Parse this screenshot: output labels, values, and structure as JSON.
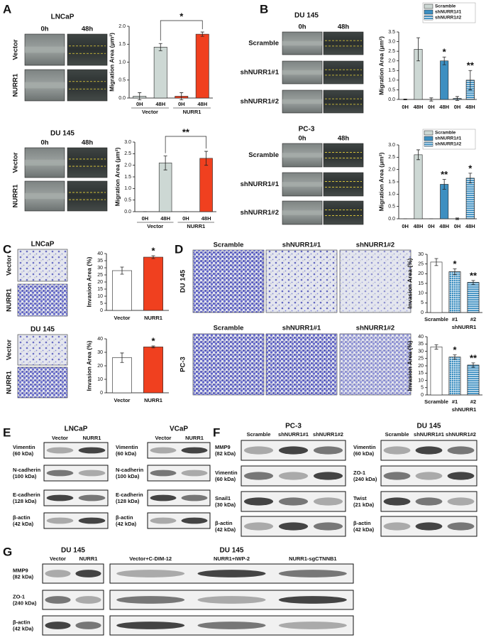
{
  "panel_labels": [
    "A",
    "B",
    "C",
    "D",
    "E",
    "F",
    "G"
  ],
  "scratch": [
    {
      "title": "LNCaP",
      "columns": [
        "0h",
        "48h"
      ],
      "rows": [
        "Vector",
        "NURR1"
      ]
    },
    {
      "title": "DU 145",
      "columns": [
        "0h",
        "48h"
      ],
      "rows": [
        "Vector",
        "NURR1"
      ]
    },
    {
      "title": "DU 145",
      "columns": [
        "0h",
        "48h"
      ],
      "rows": [
        "Scramble",
        "shNURR1#1",
        "shNURR1#2"
      ]
    },
    {
      "title": "PC-3",
      "columns": [
        "0h",
        "48h"
      ],
      "rows": [
        "Scramble",
        "shNURR1#1",
        "shNURR1#2"
      ]
    }
  ],
  "invasion": [
    {
      "title": "LNCaP",
      "rows": [
        "Vector",
        "NURR1"
      ]
    },
    {
      "title": "DU 145",
      "rows": [
        "Vector",
        "NURR1"
      ]
    }
  ],
  "invasion_grid": [
    {
      "row": "DU 145",
      "columns": [
        "Scramble",
        "shNURR1#1",
        "shNURR1#2"
      ]
    },
    {
      "row": "PC-3",
      "columns": [
        "Scramble",
        "shNURR1#1",
        "shNURR1#2"
      ]
    }
  ],
  "blots": {
    "E": [
      {
        "title": "LNCaP",
        "lanes": [
          "Vector",
          "NURR1"
        ],
        "rows": [
          {
            "name": "Vimentin",
            "size": "(60 kDa)"
          },
          {
            "name": "N-cadherin",
            "size": "(100 kDa)"
          },
          {
            "name": "E-cadherin",
            "size": "(128 kDa)"
          },
          {
            "name": "β-actin",
            "size": "(42 kDa)"
          }
        ]
      },
      {
        "title": "VCaP",
        "lanes": [
          "Vector",
          "NURR1"
        ],
        "rows": [
          {
            "name": "Vimentin",
            "size": "(60 kDa)"
          },
          {
            "name": "N-cadherin",
            "size": "(100 kDa)"
          },
          {
            "name": "E-cadherin",
            "size": "(128 kDa)"
          },
          {
            "name": "β-actin",
            "size": "(42 kDa)"
          }
        ]
      }
    ],
    "F": [
      {
        "title": "PC-3",
        "lanes": [
          "Scramble",
          "shNURR1#1",
          "shNURR1#2"
        ],
        "rows": [
          {
            "name": "MMP9",
            "size": "(82 kDa)"
          },
          {
            "name": "Vimentin",
            "size": "(60 kDa)"
          },
          {
            "name": "Snail1",
            "size": "(30 kDa)"
          },
          {
            "name": "β-actin",
            "size": "(42 kDa)"
          }
        ]
      },
      {
        "title": "DU 145",
        "lanes": [
          "Scramble",
          "shNURR1#1",
          "shNURR1#2"
        ],
        "rows": [
          {
            "name": "Vimentin",
            "size": "(60 kDa)"
          },
          {
            "name": "ZO-1",
            "size": "(240 kDa)"
          },
          {
            "name": "Twist",
            "size": "(21 kDa)"
          },
          {
            "name": "β-actin",
            "size": "(42 kDa)"
          }
        ]
      }
    ],
    "G": [
      {
        "title": "DU 145",
        "lanes": [
          "Vector",
          "NURR1"
        ],
        "rows": [
          {
            "name": "MMP9",
            "size": "(82 kDa)"
          },
          {
            "name": "ZO-1",
            "size": "(240 kDa)"
          },
          {
            "name": "β-actin",
            "size": "(42 kDa)"
          }
        ]
      },
      {
        "title": "DU 145",
        "lanes": [
          "Vector+C-DIM-12",
          "NURR1+IWP-2",
          "NURR1-sgCTNNB1"
        ]
      }
    ]
  },
  "chart_data": [
    {
      "type": "bar",
      "y_label": "Migration Area (μm²)",
      "categories": [
        "0H",
        "48H",
        "0H",
        "48H"
      ],
      "groups": [
        "Vector",
        "NURR1"
      ],
      "values": [
        0.05,
        1.42,
        0.05,
        1.78
      ],
      "errors": [
        0.1,
        0.1,
        0.1,
        0.06
      ],
      "colors": [
        "#cdd8d4",
        "#cdd8d4",
        "#f0401f",
        "#f0401f"
      ],
      "significance": [
        null,
        null,
        null,
        "*"
      ],
      "bracket": true,
      "ylim": [
        0,
        2
      ],
      "yticks": [
        {
          "value": 0,
          "label": "0.0"
        },
        0.5,
        {
          "value": 1,
          "label": "1.0"
        },
        1.5,
        {
          "value": 2,
          "label": "2.0"
        }
      ]
    },
    {
      "type": "bar",
      "y_label": "Migration Area (μm²)",
      "categories": [
        "0H",
        "48H",
        "0H",
        "48H"
      ],
      "groups": [
        "Vector",
        "NURR1"
      ],
      "values": [
        0,
        2.1,
        0,
        2.3
      ],
      "errors": [
        0,
        0.3,
        0,
        0.3
      ],
      "colors": [
        "#cdd8d4",
        "#cdd8d4",
        "#f0401f",
        "#f0401f"
      ],
      "significance": [
        null,
        null,
        null,
        "**"
      ],
      "bracket": true,
      "ylim": [
        0,
        3
      ],
      "yticks": [
        {
          "value": 0,
          "label": "0.0"
        },
        0.5,
        {
          "value": 1,
          "label": "1.0"
        },
        1.5,
        {
          "value": 2,
          "label": "2.0"
        },
        2.5,
        {
          "value": 3,
          "label": "3.0"
        }
      ]
    },
    {
      "type": "bar",
      "y_label": "Migration Area (μm²)",
      "categories": [
        "0H",
        "48H",
        "0H",
        "48H",
        "0H",
        "48H"
      ],
      "values": [
        0,
        2.6,
        0,
        2.0,
        0.05,
        1.0
      ],
      "errors": [
        0.02,
        0.6,
        0.08,
        0.2,
        0.1,
        0.5
      ],
      "colors": [
        "#cdd8d4",
        "#cdd8d4",
        "#3d8fc1",
        "#3d8fc1",
        "#3d8fc1",
        "#3d8fc1"
      ],
      "patterns": [
        null,
        null,
        null,
        null,
        "stripes",
        "stripes"
      ],
      "significance": [
        null,
        null,
        null,
        "*",
        null,
        "**"
      ],
      "legend": [
        {
          "name": "Scramble",
          "color": "#cdd8d4"
        },
        {
          "name": "shNURR1#1",
          "color": "#3d8fc1"
        },
        {
          "name": "shNURR1#2",
          "color": "#3d8fc1",
          "pattern": "stripes"
        }
      ],
      "ylim": [
        0,
        3.5
      ],
      "yticks": [
        {
          "value": 0,
          "label": "0.0"
        },
        0.5,
        {
          "value": 1,
          "label": "1.0"
        },
        1.5,
        {
          "value": 2,
          "label": "2.0"
        },
        2.5,
        {
          "value": 3,
          "label": "3.0"
        },
        3.5
      ]
    },
    {
      "type": "bar",
      "y_label": "Migration Area (μm²)",
      "categories": [
        "0H",
        "48H",
        "0H",
        "48H",
        "0H",
        "48H"
      ],
      "values": [
        0,
        2.6,
        0,
        1.4,
        0,
        1.65
      ],
      "errors": [
        0,
        0.2,
        0,
        0.2,
        0.03,
        0.2
      ],
      "colors": [
        "#cdd8d4",
        "#cdd8d4",
        "#3d8fc1",
        "#3d8fc1",
        "#3d8fc1",
        "#3d8fc1"
      ],
      "patterns": [
        null,
        null,
        null,
        null,
        "stripes",
        "stripes"
      ],
      "significance": [
        null,
        null,
        null,
        "**",
        null,
        "*"
      ],
      "legend": [
        {
          "name": "Scramble",
          "color": "#cdd8d4"
        },
        {
          "name": "shNURR1#1",
          "color": "#3d8fc1"
        },
        {
          "name": "shNURR1#2",
          "color": "#3d8fc1",
          "pattern": "stripes"
        }
      ],
      "ylim": [
        0,
        3
      ],
      "yticks": [
        {
          "value": 0,
          "label": "0.0"
        },
        0.5,
        {
          "value": 1,
          "label": "1.0"
        },
        1.5,
        {
          "value": 2,
          "label": "2.0"
        },
        2.5,
        {
          "value": 3,
          "label": "3.0"
        }
      ]
    },
    {
      "type": "bar",
      "y_label": "Invasion Area (%)",
      "categories": [
        "Vector",
        "NURR1"
      ],
      "values": [
        28,
        37.5
      ],
      "errors": [
        2.5,
        1
      ],
      "colors": [
        "#ffffff",
        "#f0401f"
      ],
      "significance": [
        null,
        "*"
      ],
      "ylim": [
        0,
        40
      ],
      "yticks": [
        0,
        5,
        10,
        15,
        20,
        25,
        30,
        35,
        40
      ]
    },
    {
      "type": "bar",
      "y_label": "Invasion Area (%)",
      "categories": [
        "Vector",
        "NURR1"
      ],
      "values": [
        26,
        34
      ],
      "errors": [
        3.5,
        0.7
      ],
      "colors": [
        "#ffffff",
        "#f0401f"
      ],
      "significance": [
        null,
        "*"
      ],
      "ylim": [
        0,
        40
      ],
      "yticks": [
        0,
        10,
        20,
        30,
        40
      ]
    },
    {
      "type": "bar",
      "y_label": "Invasion Area (%)",
      "categories": [
        "Scramble",
        "#1",
        "#2"
      ],
      "subgroup": "shNURR1",
      "values": [
        26,
        21,
        15.5
      ],
      "errors": [
        1.8,
        1.5,
        1
      ],
      "colors": [
        "#ffffff",
        "#3d8fc1",
        "#3d8fc1"
      ],
      "patterns": [
        null,
        "grid",
        "stripes"
      ],
      "significance": [
        null,
        "*",
        "**"
      ],
      "ylim": [
        0,
        30
      ],
      "yticks": [
        0,
        5,
        10,
        15,
        20,
        25,
        30
      ]
    },
    {
      "type": "bar",
      "y_label": "Invasion Area (%)",
      "categories": [
        "Scramble",
        "#1",
        "#2"
      ],
      "subgroup": "shNURR1",
      "values": [
        33,
        26,
        20.5
      ],
      "errors": [
        1.5,
        1.5,
        1.5
      ],
      "colors": [
        "#ffffff",
        "#3d8fc1",
        "#3d8fc1"
      ],
      "patterns": [
        null,
        "grid",
        "stripes"
      ],
      "significance": [
        null,
        "*",
        "**"
      ],
      "ylim": [
        0,
        40
      ],
      "yticks": [
        0,
        5,
        10,
        15,
        20,
        25,
        30,
        35,
        40
      ]
    }
  ]
}
